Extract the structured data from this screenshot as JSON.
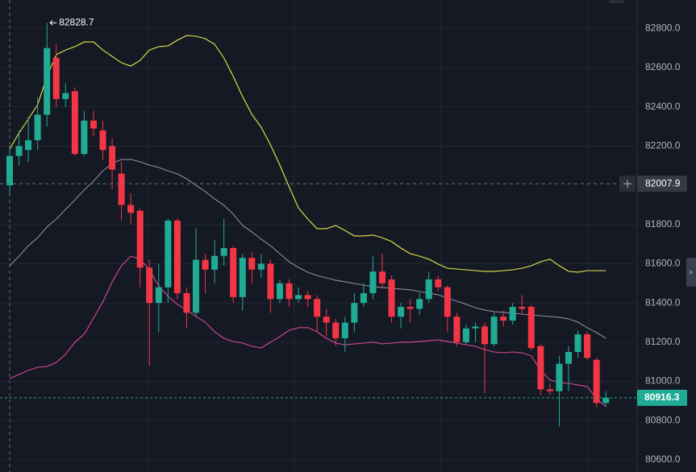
{
  "chart_data": {
    "type": "candlestick",
    "ylim": [
      80538,
      82945
    ],
    "yticks": [
      {
        "value": 82800,
        "label": "82800.0"
      },
      {
        "value": 82600,
        "label": "82600.0"
      },
      {
        "value": 82400,
        "label": "82400.0"
      },
      {
        "value": 82200,
        "label": "82200.0"
      },
      {
        "value": 81800,
        "label": "81800.0"
      },
      {
        "value": 81600,
        "label": "81600.0"
      },
      {
        "value": 81400,
        "label": "81400.0"
      },
      {
        "value": 81200,
        "label": "81200.0"
      },
      {
        "value": 81000,
        "label": "81000.0"
      },
      {
        "value": 80800,
        "label": "80800.0"
      },
      {
        "value": 80600,
        "label": "80600.0"
      }
    ],
    "grid": true,
    "up_color": "#22ab94",
    "down_color": "#f23645",
    "open": [
      82000,
      82150,
      82180,
      82230,
      82360,
      82650,
      82440,
      82480,
      82160,
      82330,
      82280,
      82200,
      82060,
      81900,
      81870,
      81580,
      81400,
      81480,
      81820,
      81450,
      81350,
      81620,
      81570,
      81640,
      81680,
      81430,
      81630,
      81570,
      81600,
      81420,
      81500,
      81420,
      81440,
      81420,
      81330,
      81300,
      81220,
      81300,
      81400,
      81450,
      81560,
      81520,
      81330,
      81380,
      81370,
      81420,
      81520,
      81480,
      81330,
      81200,
      81270,
      81280,
      81190,
      81330,
      81310,
      81380,
      81380,
      81180,
      80960,
      80950,
      81090,
      81150,
      81240,
      81110,
      80890
    ],
    "high": [
      82200,
      82280,
      82350,
      82450,
      82828.7,
      82720,
      82520,
      82500,
      82380,
      82380,
      82330,
      82240,
      82120,
      81960,
      81880,
      81620,
      81600,
      81830,
      81830,
      81480,
      81780,
      81650,
      81720,
      81830,
      81690,
      81650,
      81660,
      81650,
      81620,
      81520,
      81520,
      81480,
      81460,
      81440,
      81370,
      81320,
      81330,
      81450,
      81500,
      81640,
      81650,
      81540,
      81400,
      81420,
      81450,
      81560,
      81540,
      81490,
      81350,
      81290,
      81300,
      81300,
      81350,
      81360,
      81400,
      81440,
      81390,
      81190,
      80990,
      81130,
      81180,
      81260,
      81250,
      81120,
      80950
    ],
    "low": [
      81950,
      82100,
      82120,
      82180,
      82300,
      82400,
      82400,
      82150,
      82150,
      82250,
      82130,
      81980,
      81820,
      81800,
      81480,
      81080,
      81250,
      81400,
      81420,
      81270,
      81330,
      81450,
      81500,
      81590,
      81400,
      81360,
      81500,
      81530,
      81350,
      81400,
      81380,
      81400,
      81380,
      81250,
      81230,
      81180,
      81150,
      81250,
      81380,
      81420,
      81480,
      81300,
      81270,
      81300,
      81340,
      81400,
      81460,
      81250,
      81180,
      81190,
      81200,
      80940,
      81180,
      81280,
      81290,
      81340,
      81160,
      80930,
      80930,
      80770,
      80950,
      81120,
      81110,
      80870,
      80870
    ],
    "close": [
      82150,
      82200,
      82230,
      82360,
      82700,
      82440,
      82470,
      82160,
      82330,
      82290,
      82180,
      82080,
      81900,
      81860,
      81580,
      81400,
      81480,
      81820,
      81450,
      81350,
      81620,
      81570,
      81640,
      81680,
      81430,
      81630,
      81570,
      81600,
      81420,
      81500,
      81420,
      81440,
      81420,
      81330,
      81300,
      81220,
      81300,
      81400,
      81450,
      81560,
      81500,
      81330,
      81380,
      81370,
      81420,
      81520,
      81480,
      81330,
      81200,
      81270,
      81280,
      81190,
      81330,
      81310,
      81380,
      81370,
      81170,
      80960,
      80950,
      81090,
      81150,
      81240,
      81120,
      80890,
      80916.3
    ],
    "series": [
      {
        "color": "#e8e84a",
        "values": [
          82185,
          82267,
          82337,
          82411,
          82555,
          82666,
          82690,
          82707,
          82731,
          82731,
          82690,
          82657,
          82625,
          82608,
          82637,
          82690,
          82707,
          82711,
          82740,
          82764,
          82760,
          82748,
          82719,
          82649,
          82555,
          82452,
          82362,
          82296,
          82206,
          82103,
          81992,
          81885,
          81828,
          81779,
          81779,
          81795,
          81770,
          81742,
          81742,
          81746,
          81733,
          81713,
          81680,
          81651,
          81639,
          81623,
          81598,
          81577,
          81573,
          81569,
          81565,
          81561,
          81561,
          81565,
          81569,
          81577,
          81590,
          81610,
          81623,
          81590,
          81561,
          81557,
          81565,
          81565,
          81565
        ]
      },
      {
        "color": "#8a8e9e",
        "values": [
          81590,
          81639,
          81692,
          81733,
          81787,
          81828,
          81877,
          81926,
          81976,
          82021,
          82074,
          82111,
          82132,
          82132,
          82120,
          82103,
          82091,
          82074,
          82058,
          82033,
          82000,
          81968,
          81931,
          81898,
          81853,
          81795,
          81762,
          81725,
          81692,
          81651,
          81610,
          81581,
          81557,
          81540,
          81528,
          81516,
          81508,
          81499,
          81491,
          81483,
          81479,
          81475,
          81471,
          81467,
          81458,
          81450,
          81442,
          81425,
          81409,
          81393,
          81376,
          81364,
          81356,
          81352,
          81348,
          81343,
          81339,
          81335,
          81331,
          81327,
          81319,
          81302,
          81274,
          81249,
          81220
        ]
      },
      {
        "color": "#d9499a",
        "values": [
          81015,
          81035,
          81056,
          81072,
          81076,
          81097,
          81138,
          81200,
          81241,
          81323,
          81405,
          81508,
          81590,
          81639,
          81623,
          81569,
          81487,
          81434,
          81393,
          81364,
          81331,
          81302,
          81253,
          81220,
          81204,
          81195,
          81179,
          81171,
          81200,
          81228,
          81261,
          81274,
          81274,
          81253,
          81220,
          81195,
          81187,
          81191,
          81195,
          81200,
          81191,
          81195,
          81200,
          81200,
          81204,
          81208,
          81212,
          81204,
          81195,
          81187,
          81179,
          81162,
          81150,
          81146,
          81150,
          81146,
          81130,
          81056,
          81007,
          80994,
          80990,
          80982,
          80974,
          80912,
          80871
        ]
      }
    ],
    "high_marker": 82828.7,
    "crosshair_price": 82007.9,
    "last_price": 80916.3
  }
}
